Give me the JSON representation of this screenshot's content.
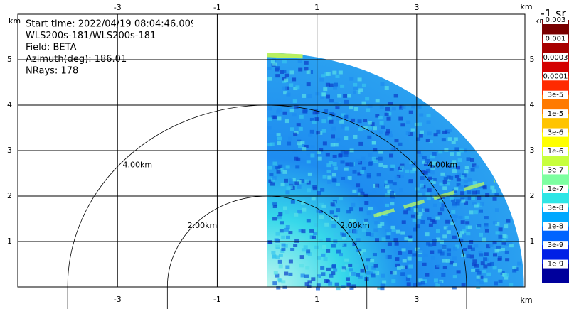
{
  "chart_data": {
    "type": "ppi",
    "annotations": [
      "Start time: 2022/04/19 08:04:46.009",
      "WLS200s-181/WLS200s-181",
      "Field: BETA",
      "Azimuth(deg): 186.01",
      "NRays: 178"
    ],
    "x_label": "km",
    "y_label": "km",
    "xlim": [
      -5.0,
      5.17
    ],
    "ylim": [
      0,
      6
    ],
    "xticks": [
      -3,
      -1,
      1,
      3
    ],
    "yticks": [
      1,
      2,
      3,
      4,
      5
    ],
    "grid": true,
    "max_range": 5.15,
    "range_rings": [
      {
        "radius": 2,
        "label": "2.00km"
      },
      {
        "radius": 4,
        "label": "4.00km"
      }
    ],
    "colorbar": {
      "label": "-1 sr",
      "ticks": [
        "0.003",
        "0.001",
        "0.0003",
        "0.0001",
        "3e-5",
        "1e-5",
        "3e-6",
        "1e-6",
        "3e-7",
        "1e-7",
        "3e-8",
        "1e-8",
        "3e-9",
        "1e-9"
      ],
      "colors": [
        "#7a0000",
        "#a80000",
        "#d40000",
        "#ff2a00",
        "#ff7a00",
        "#ffc400",
        "#ffff00",
        "#c8ff3c",
        "#7cffa0",
        "#2ee6e6",
        "#00a8ff",
        "#0064ff",
        "#0020e6",
        "#00009c"
      ]
    }
  }
}
